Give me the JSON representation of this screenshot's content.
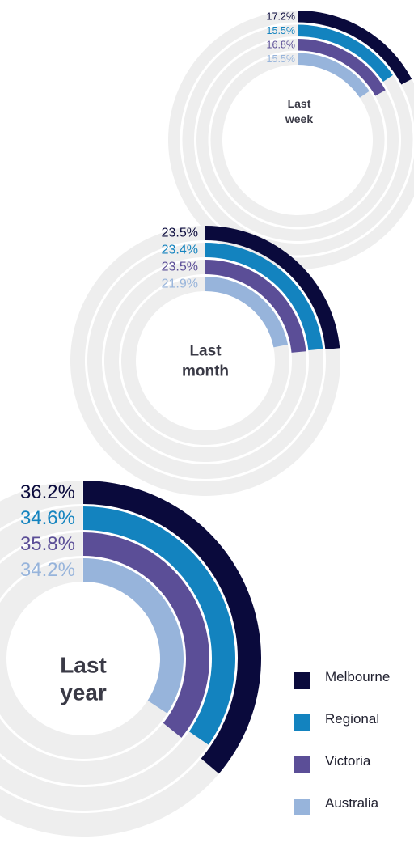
{
  "chart_data": [
    {
      "type": "radial-bar",
      "title": "Last week",
      "title_lines": [
        "Last",
        "week"
      ],
      "max": 100,
      "series": [
        {
          "name": "Melbourne",
          "value": 17.2,
          "label": "17.2%"
        },
        {
          "name": "Regional",
          "value": 15.5,
          "label": "15.5%"
        },
        {
          "name": "Victoria",
          "value": 16.8,
          "label": "16.8%"
        },
        {
          "name": "Australia",
          "value": 15.5,
          "label": "15.5%"
        }
      ]
    },
    {
      "type": "radial-bar",
      "title": "Last month",
      "title_lines": [
        "Last",
        "month"
      ],
      "max": 100,
      "series": [
        {
          "name": "Melbourne",
          "value": 23.5,
          "label": "23.5%"
        },
        {
          "name": "Regional",
          "value": 23.4,
          "label": "23.4%"
        },
        {
          "name": "Victoria",
          "value": 23.5,
          "label": "23.5%"
        },
        {
          "name": "Australia",
          "value": 21.9,
          "label": "21.9%"
        }
      ]
    },
    {
      "type": "radial-bar",
      "title": "Last year",
      "title_lines": [
        "Last",
        "year"
      ],
      "max": 100,
      "series": [
        {
          "name": "Melbourne",
          "value": 36.2,
          "label": "36.2%"
        },
        {
          "name": "Regional",
          "value": 34.6,
          "label": "34.6%"
        },
        {
          "name": "Victoria",
          "value": 35.8,
          "label": "35.8%"
        },
        {
          "name": "Australia",
          "value": 34.2,
          "label": "34.2%"
        }
      ]
    }
  ],
  "legend": {
    "items": [
      {
        "name": "Melbourne",
        "color": "#0a0a3c"
      },
      {
        "name": "Regional",
        "color": "#1383bf"
      },
      {
        "name": "Victoria",
        "color": "#5b4e97"
      },
      {
        "name": "Australia",
        "color": "#97b4db"
      }
    ],
    "placement": "bottom-right"
  },
  "colors": {
    "track": "#eeeeee",
    "title_text": "#3a3a46"
  }
}
